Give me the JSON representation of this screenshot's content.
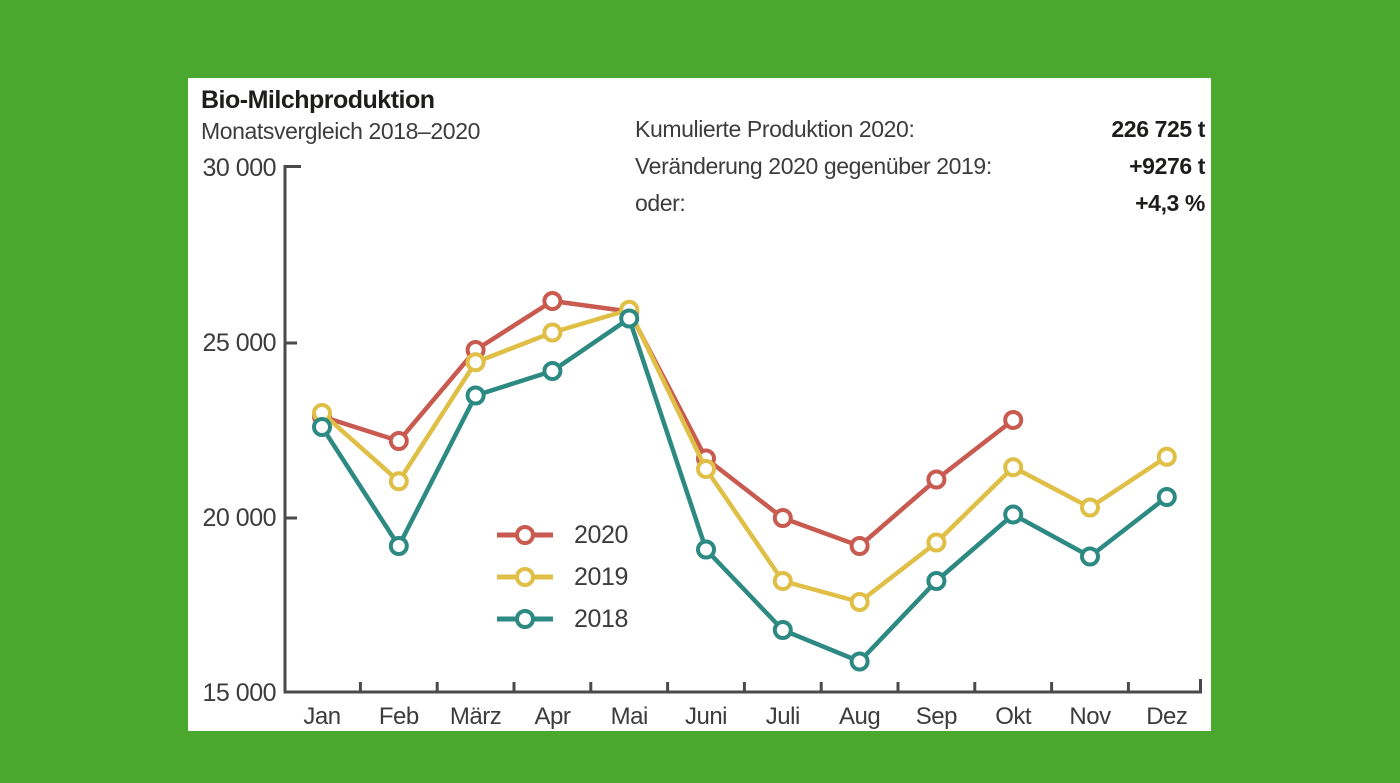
{
  "page": {
    "background_color": "#4aa82e",
    "card_background": "#ffffff"
  },
  "header": {
    "title": "Bio-Milchproduktion",
    "subtitle": "Monatsvergleich 2018–2020"
  },
  "stats": [
    {
      "label": "Kumulierte Produktion 2020:",
      "value": "226 725 t"
    },
    {
      "label": "Veränderung 2020 gegenüber 2019:",
      "value": "+9276 t"
    },
    {
      "label": "oder:",
      "value": "+4,3 %"
    }
  ],
  "chart_data": {
    "type": "line",
    "title": "Bio-Milchproduktion",
    "subtitle": "Monatsvergleich 2018–2020",
    "unit": "t",
    "categories": [
      "Jan",
      "Feb",
      "März",
      "Apr",
      "Mai",
      "Juni",
      "Juli",
      "Aug",
      "Sep",
      "Okt",
      "Nov",
      "Dez"
    ],
    "ylim": [
      15000,
      30000
    ],
    "yticks": [
      {
        "value": 30000,
        "label": "30 000"
      },
      {
        "value": 25000,
        "label": "25 000"
      },
      {
        "value": 20000,
        "label": "20 000"
      },
      {
        "value": 15000,
        "label": "15 000"
      }
    ],
    "grid": false,
    "legend_position": "inside-lower-left",
    "axis_color": "#4a4a4a",
    "series": [
      {
        "name": "2020",
        "color": "#c85a50",
        "values": [
          22900,
          22200,
          24800,
          26200,
          25900,
          21700,
          20000,
          19200,
          21100,
          22800,
          null,
          null
        ]
      },
      {
        "name": "2019",
        "color": "#e0bf46",
        "values": [
          23000,
          21050,
          24450,
          25300,
          25950,
          21400,
          18200,
          17600,
          19300,
          21450,
          20300,
          21750
        ]
      },
      {
        "name": "2018",
        "color": "#2d8a82",
        "values": [
          22600,
          19200,
          23500,
          24200,
          25700,
          19100,
          16800,
          15900,
          18200,
          20100,
          18900,
          20600
        ]
      }
    ]
  }
}
